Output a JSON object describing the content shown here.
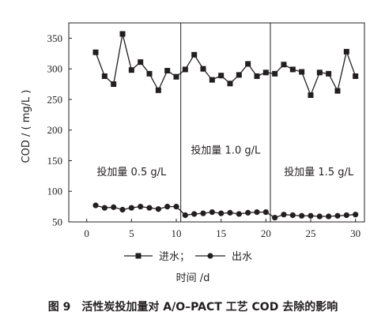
{
  "chart_data": {
    "type": "line",
    "xlabel": "时间 /d",
    "ylabel": "COD / ( mg/L )",
    "xlim": [
      -2,
      31
    ],
    "ylim": [
      50,
      375
    ],
    "xticks": [
      0,
      5,
      10,
      15,
      20,
      25,
      30
    ],
    "yticks": [
      50,
      100,
      150,
      200,
      250,
      300,
      350
    ],
    "grid": false,
    "legend_position": "bottom-center",
    "legend_labels": [
      "进水；",
      "出水"
    ],
    "separators_x": [
      10.5,
      20.5
    ],
    "annotations": [
      "投加量 0.5 g/L",
      "投加量 1.0 g/L",
      "投加量 1.5 g/L"
    ],
    "series": [
      {
        "name": "进水",
        "marker": "square",
        "x": [
          1,
          2,
          3,
          4,
          5,
          6,
          7,
          8,
          9,
          10,
          11,
          12,
          13,
          14,
          15,
          16,
          17,
          18,
          19,
          20,
          21,
          22,
          23,
          24,
          25,
          26,
          27,
          28,
          29,
          30
        ],
        "values": [
          327,
          288,
          275,
          357,
          298,
          311,
          292,
          265,
          297,
          287,
          299,
          323,
          300,
          282,
          289,
          276,
          290,
          308,
          288,
          294,
          292,
          307,
          299,
          295,
          257,
          294,
          292,
          264,
          328,
          288
        ]
      },
      {
        "name": "出水",
        "marker": "circle",
        "x": [
          1,
          2,
          3,
          4,
          5,
          6,
          7,
          8,
          9,
          10,
          11,
          12,
          13,
          14,
          15,
          16,
          17,
          18,
          19,
          20,
          21,
          22,
          23,
          24,
          25,
          26,
          27,
          28,
          29,
          30
        ],
        "values": [
          77,
          73,
          74,
          70,
          73,
          75,
          73,
          71,
          75,
          75,
          61,
          63,
          64,
          66,
          64,
          65,
          63,
          65,
          66,
          66,
          57,
          62,
          61,
          60,
          60,
          59,
          59,
          60,
          61,
          62
        ]
      }
    ]
  },
  "caption": "图 9　活性炭投加量对 A/O–PACT 工艺 COD 去除的影响"
}
